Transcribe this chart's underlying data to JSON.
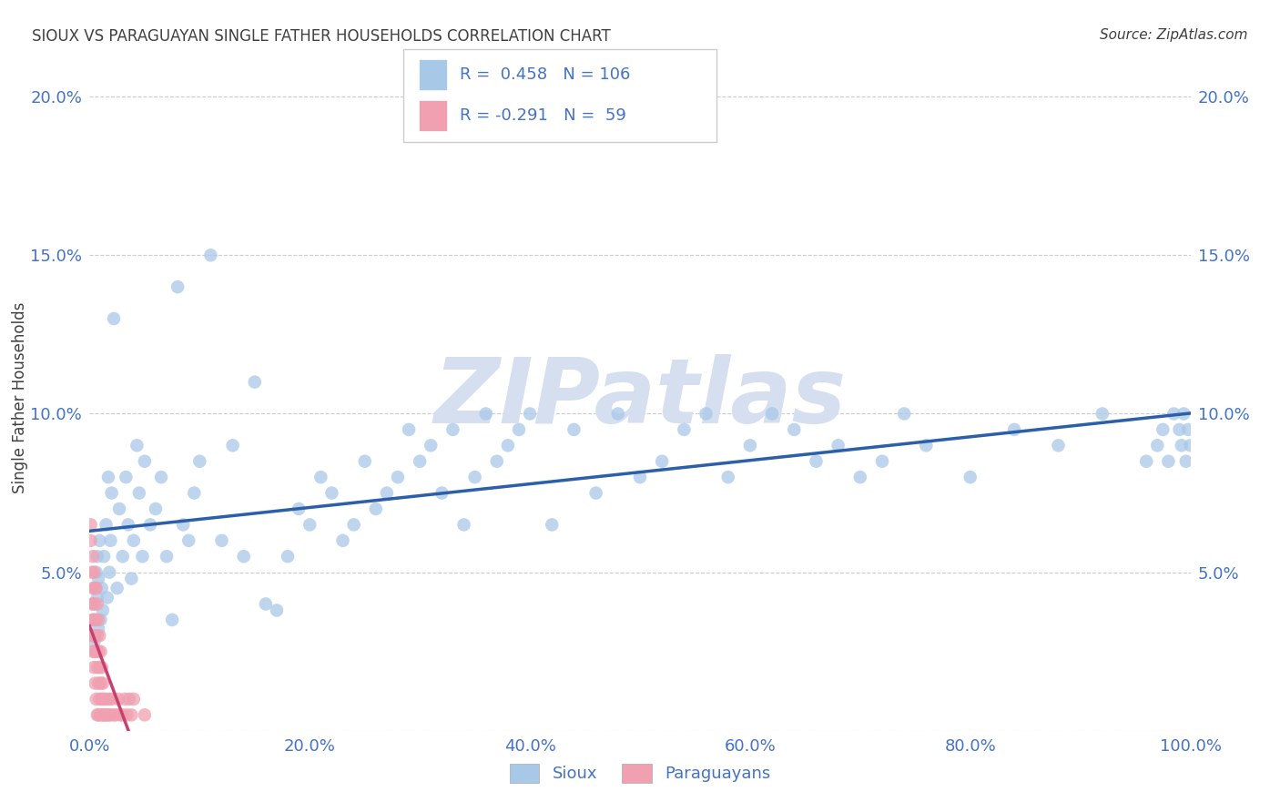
{
  "title": "SIOUX VS PARAGUAYAN SINGLE FATHER HOUSEHOLDS CORRELATION CHART",
  "source": "Source: ZipAtlas.com",
  "ylabel": "Single Father Households",
  "xlim": [
    0,
    1.0
  ],
  "ylim": [
    0,
    0.21
  ],
  "xticks": [
    0.0,
    0.2,
    0.4,
    0.6,
    0.8,
    1.0
  ],
  "xtick_labels": [
    "0.0%",
    "20.0%",
    "40.0%",
    "60.0%",
    "80.0%",
    "100.0%"
  ],
  "yticks": [
    0.0,
    0.05,
    0.1,
    0.15,
    0.2
  ],
  "ytick_labels_left": [
    "",
    "5.0%",
    "10.0%",
    "15.0%",
    "20.0%"
  ],
  "ytick_labels_right": [
    "",
    "5.0%",
    "10.0%",
    "15.0%",
    "20.0%"
  ],
  "sioux_R": 0.458,
  "sioux_N": 106,
  "paraguay_R": -0.291,
  "paraguay_N": 59,
  "sioux_color": "#a8c8e8",
  "sioux_line_color": "#2b5faa",
  "paraguay_color": "#f0a0b0",
  "paraguay_line_color": "#c84070",
  "background_color": "#ffffff",
  "grid_color": "#cccccc",
  "title_color": "#404040",
  "axis_tick_color": "#4472c4",
  "watermark_color": "#d5dff0",
  "legend_edge_color": "#cccccc",
  "sioux_x": [
    0.003,
    0.004,
    0.004,
    0.005,
    0.005,
    0.006,
    0.007,
    0.007,
    0.008,
    0.008,
    0.009,
    0.01,
    0.011,
    0.012,
    0.013,
    0.015,
    0.016,
    0.017,
    0.018,
    0.019,
    0.02,
    0.022,
    0.025,
    0.027,
    0.03,
    0.033,
    0.035,
    0.038,
    0.04,
    0.043,
    0.045,
    0.048,
    0.05,
    0.055,
    0.06,
    0.065,
    0.07,
    0.075,
    0.08,
    0.085,
    0.09,
    0.095,
    0.1,
    0.11,
    0.12,
    0.13,
    0.14,
    0.15,
    0.16,
    0.17,
    0.18,
    0.19,
    0.2,
    0.21,
    0.22,
    0.23,
    0.24,
    0.25,
    0.26,
    0.27,
    0.28,
    0.29,
    0.3,
    0.31,
    0.32,
    0.33,
    0.34,
    0.35,
    0.36,
    0.37,
    0.38,
    0.39,
    0.4,
    0.42,
    0.44,
    0.46,
    0.48,
    0.5,
    0.52,
    0.54,
    0.56,
    0.58,
    0.6,
    0.62,
    0.64,
    0.66,
    0.68,
    0.7,
    0.72,
    0.74,
    0.76,
    0.8,
    0.84,
    0.88,
    0.92,
    0.96,
    0.97,
    0.975,
    0.98,
    0.985,
    0.99,
    0.992,
    0.994,
    0.996,
    0.998,
    1.0
  ],
  "sioux_y": [
    0.035,
    0.04,
    0.028,
    0.045,
    0.03,
    0.05,
    0.042,
    0.055,
    0.032,
    0.048,
    0.06,
    0.035,
    0.045,
    0.038,
    0.055,
    0.065,
    0.042,
    0.08,
    0.05,
    0.06,
    0.075,
    0.13,
    0.045,
    0.07,
    0.055,
    0.08,
    0.065,
    0.048,
    0.06,
    0.09,
    0.075,
    0.055,
    0.085,
    0.065,
    0.07,
    0.08,
    0.055,
    0.035,
    0.14,
    0.065,
    0.06,
    0.075,
    0.085,
    0.15,
    0.06,
    0.09,
    0.055,
    0.11,
    0.04,
    0.038,
    0.055,
    0.07,
    0.065,
    0.08,
    0.075,
    0.06,
    0.065,
    0.085,
    0.07,
    0.075,
    0.08,
    0.095,
    0.085,
    0.09,
    0.075,
    0.095,
    0.065,
    0.08,
    0.1,
    0.085,
    0.09,
    0.095,
    0.1,
    0.065,
    0.095,
    0.075,
    0.1,
    0.08,
    0.085,
    0.095,
    0.1,
    0.08,
    0.09,
    0.1,
    0.095,
    0.085,
    0.09,
    0.08,
    0.085,
    0.1,
    0.09,
    0.08,
    0.095,
    0.09,
    0.1,
    0.085,
    0.09,
    0.095,
    0.085,
    0.1,
    0.095,
    0.09,
    0.1,
    0.085,
    0.095,
    0.09
  ],
  "paraguay_x": [
    0.001,
    0.001,
    0.002,
    0.002,
    0.002,
    0.003,
    0.003,
    0.003,
    0.003,
    0.004,
    0.004,
    0.004,
    0.004,
    0.005,
    0.005,
    0.005,
    0.005,
    0.006,
    0.006,
    0.006,
    0.006,
    0.007,
    0.007,
    0.007,
    0.007,
    0.008,
    0.008,
    0.008,
    0.008,
    0.009,
    0.009,
    0.009,
    0.01,
    0.01,
    0.01,
    0.011,
    0.011,
    0.012,
    0.012,
    0.013,
    0.013,
    0.014,
    0.015,
    0.016,
    0.017,
    0.018,
    0.019,
    0.02,
    0.022,
    0.024,
    0.026,
    0.028,
    0.03,
    0.032,
    0.034,
    0.036,
    0.038,
    0.04,
    0.05
  ],
  "paraguay_y": [
    0.06,
    0.065,
    0.05,
    0.04,
    0.03,
    0.055,
    0.045,
    0.035,
    0.025,
    0.05,
    0.04,
    0.03,
    0.02,
    0.045,
    0.035,
    0.025,
    0.015,
    0.045,
    0.035,
    0.025,
    0.01,
    0.04,
    0.03,
    0.02,
    0.005,
    0.035,
    0.025,
    0.015,
    0.005,
    0.03,
    0.02,
    0.01,
    0.025,
    0.015,
    0.005,
    0.02,
    0.01,
    0.015,
    0.005,
    0.01,
    0.005,
    0.005,
    0.01,
    0.005,
    0.005,
    0.01,
    0.005,
    0.01,
    0.005,
    0.005,
    0.01,
    0.005,
    0.005,
    0.01,
    0.005,
    0.01,
    0.005,
    0.01,
    0.005
  ]
}
